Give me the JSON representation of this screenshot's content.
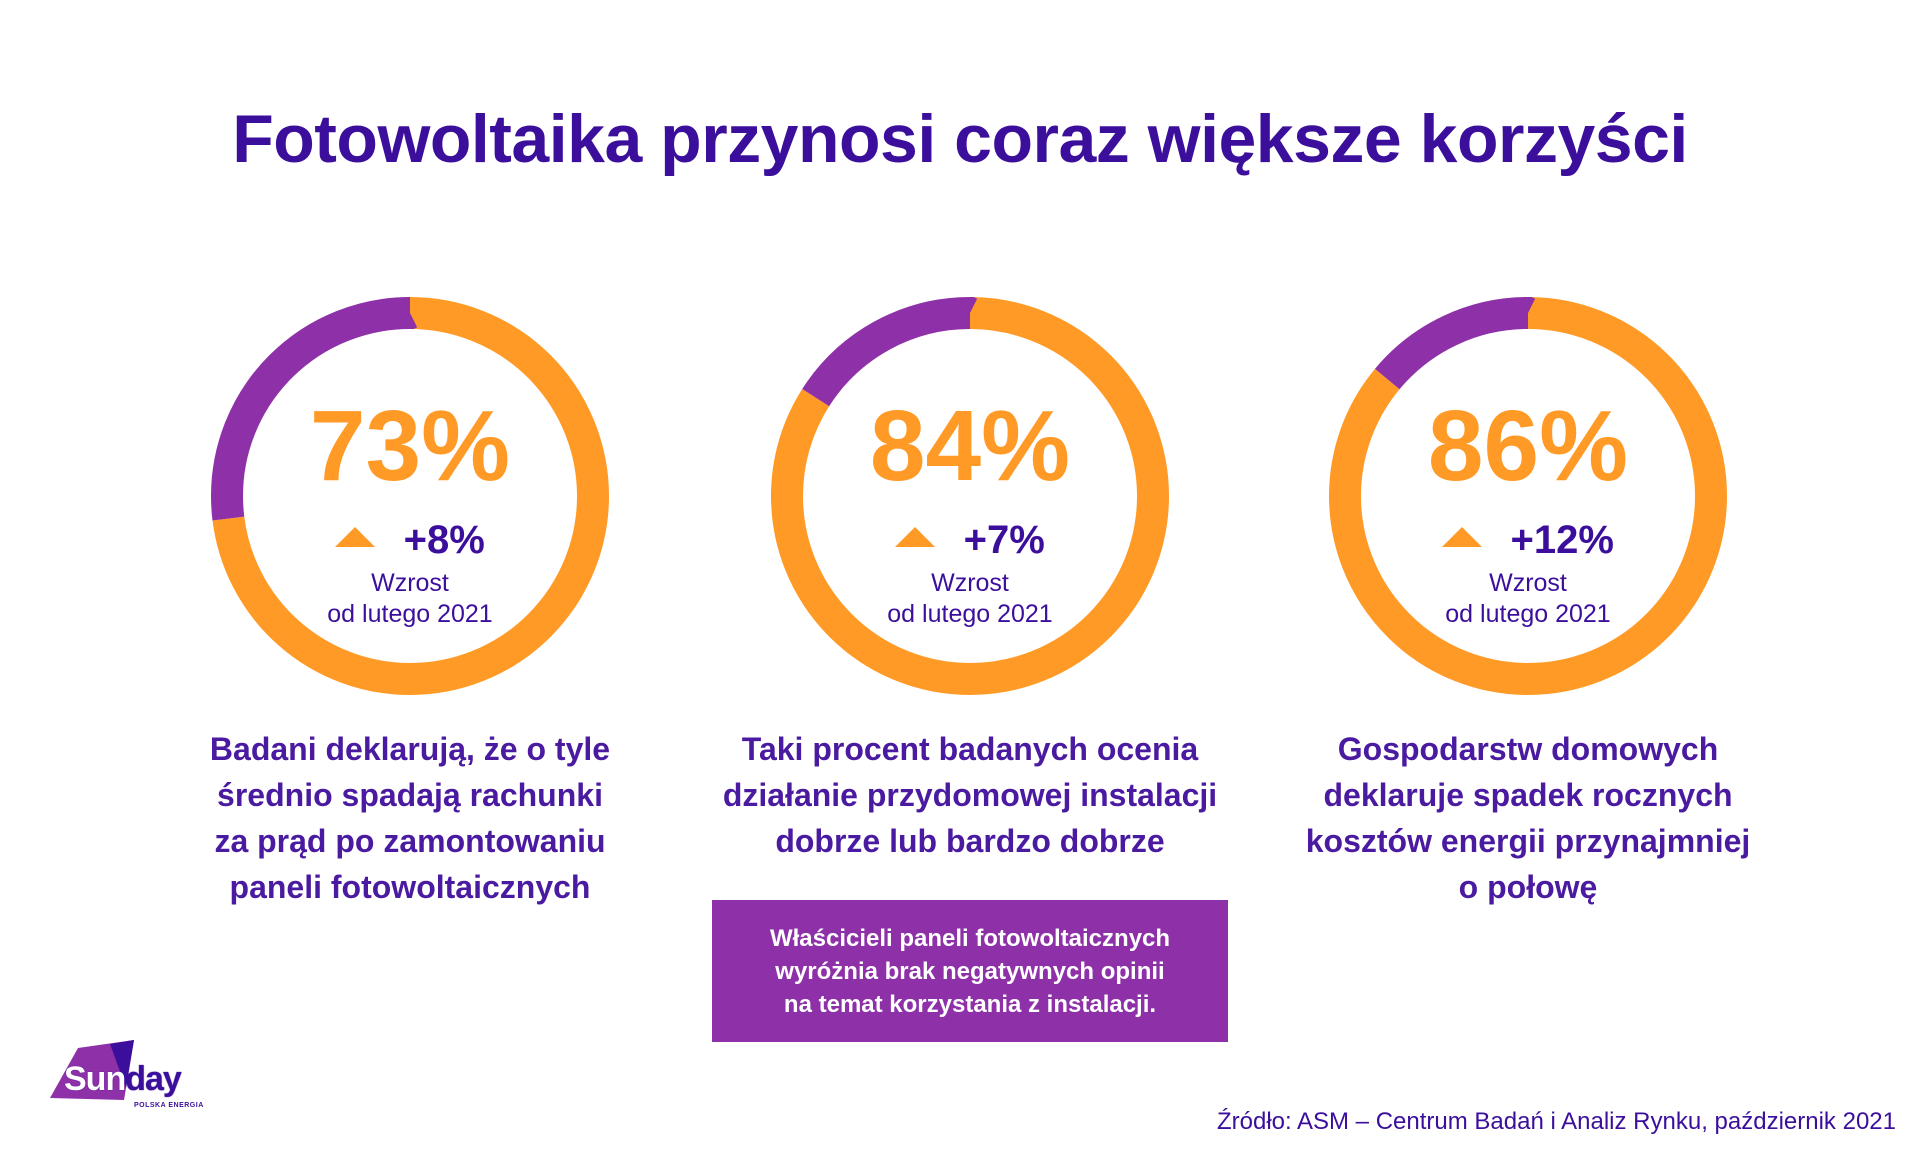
{
  "title": "Fotowoltaika przynosi coraz większe korzyści",
  "colors": {
    "orange": "#ff9a27",
    "purple": "#8e30a8",
    "navy": "#3b0f9c"
  },
  "chart_data": [
    {
      "type": "pie",
      "values": [
        73,
        27
      ],
      "value_label": "73%",
      "change_label": "+8%",
      "change_value": 8,
      "growth_line1": "Wzrost",
      "growth_line2": "od lutego 2021",
      "description": [
        "Badani deklarują, że o tyle",
        "średnio spadają rachunki",
        "za prąd po zamontowaniu",
        "paneli fotowoltaicznych"
      ]
    },
    {
      "type": "pie",
      "values": [
        84,
        16
      ],
      "value_label": "84%",
      "change_label": "+7%",
      "change_value": 7,
      "growth_line1": "Wzrost",
      "growth_line2": "od lutego 2021",
      "description": [
        "Taki procent badanych ocenia",
        "działanie przydomowej instalacji",
        "dobrze lub bardzo dobrze"
      ]
    },
    {
      "type": "pie",
      "values": [
        86,
        14
      ],
      "value_label": "86%",
      "change_label": "+12%",
      "change_value": 12,
      "growth_line1": "Wzrost",
      "growth_line2": "od lutego 2021",
      "description": [
        "Gospodarstw domowych",
        "deklaruje spadek rocznych",
        "kosztów energii przynajmniej",
        "o połowę"
      ]
    }
  ],
  "note": [
    "Właścicieli paneli fotowoltaicznych",
    "wyróżnia brak negatywnych opinii",
    "na temat korzystania z instalacji."
  ],
  "logo": {
    "word_part1": "Sun",
    "word_part2": "day",
    "subtitle": "POLSKA ENERGIA"
  },
  "source": "Źródło: ASM – Centrum Badań i Analiz Rynku, październik 2021"
}
